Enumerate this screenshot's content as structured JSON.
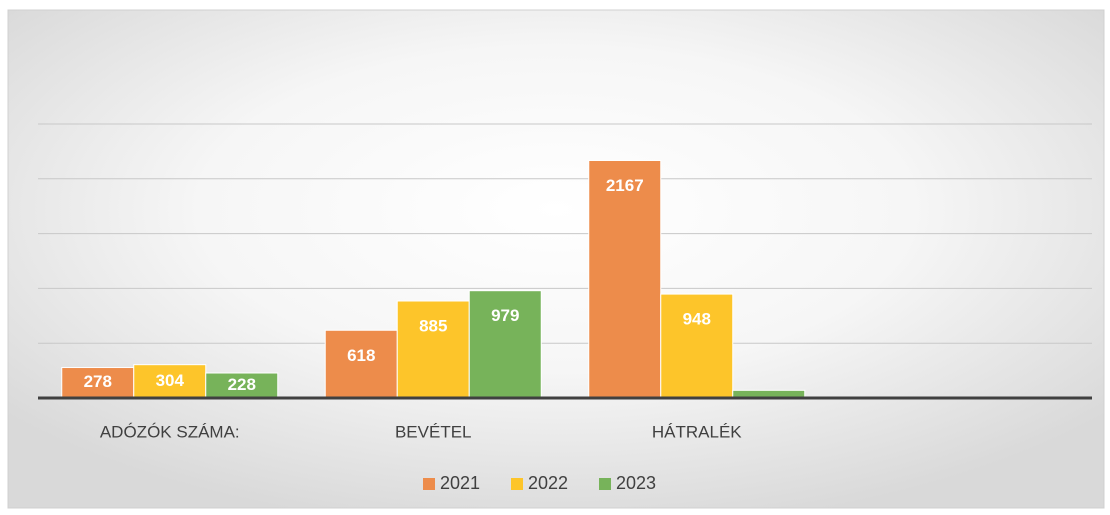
{
  "chart_data": {
    "type": "bar",
    "categories": [
      "ADÓZÓK SZÁMA:",
      "BEVÉTEL",
      "HÁTRALÉK",
      null
    ],
    "series": [
      {
        "name": "2021",
        "color": "#ed8c4b",
        "values": [
          278,
          618,
          2167,
          null
        ]
      },
      {
        "name": "2022",
        "color": "#fdc52a",
        "values": [
          304,
          885,
          948,
          null
        ]
      },
      {
        "name": "2023",
        "color": "#77b35a",
        "values": [
          228,
          979,
          70,
          null
        ]
      }
    ],
    "ylim": [
      0,
      2500
    ],
    "yticks": [
      0,
      500,
      1000,
      1500,
      2000,
      2500
    ],
    "grid": true,
    "legend": "bottom"
  }
}
